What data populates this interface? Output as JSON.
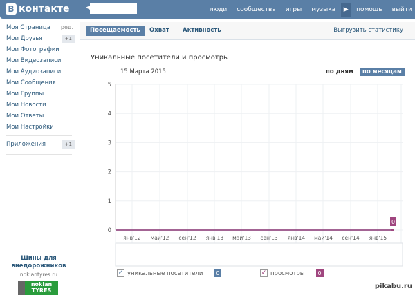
{
  "header": {
    "logo_letter": "В",
    "logo_text": "контакте",
    "back_icon": "chevron-left-icon",
    "nav": [
      "люди",
      "сообщества",
      "игры",
      "музыка",
      "помощь",
      "выйти"
    ],
    "play_icon": "play-icon"
  },
  "sidebar": {
    "items": [
      {
        "label": "Моя Страница",
        "extra": "ред."
      },
      {
        "label": "Мои Друзья",
        "badge": "+1"
      },
      {
        "label": "Мои Фотографии"
      },
      {
        "label": "Мои Видеозаписи"
      },
      {
        "label": "Мои Аудиозаписи"
      },
      {
        "label": "Мои Сообщения"
      },
      {
        "label": "Мои Группы"
      },
      {
        "label": "Мои Новости"
      },
      {
        "label": "Мои Ответы"
      },
      {
        "label": "Мои Настройки"
      }
    ],
    "apps": {
      "label": "Приложения",
      "badge": "+1"
    }
  },
  "ad": {
    "title": "Шины для внедорожников",
    "url": "nokiantyres.ru",
    "logo": "nokian TYRES"
  },
  "tabs": [
    "Посещаемость",
    "Охват",
    "Активность"
  ],
  "export_label": "Выгрузить статистику",
  "chart_title": "Уникальные посетители и просмотры",
  "chart_date": "15 Марта 2015",
  "period": {
    "days": "по дням",
    "months": "по месяцам"
  },
  "chart_data": {
    "type": "line",
    "title": "Уникальные посетители и просмотры",
    "ylim": [
      0,
      5
    ],
    "yticks": [
      0,
      1,
      2,
      3,
      4,
      5
    ],
    "grid": true,
    "xticks": [
      "янв'12",
      "май'12",
      "сен'12",
      "янв'13",
      "май'13",
      "сен'13",
      "янв'14",
      "май'14",
      "сен'14",
      "янв'15"
    ],
    "series": [
      {
        "name": "уникальные посетители",
        "color": "#5a7fa6",
        "values": [
          0,
          0,
          0,
          0,
          0,
          0,
          0,
          0,
          0,
          0,
          0
        ]
      },
      {
        "name": "просмотры",
        "color": "#a0467f",
        "values": [
          0,
          0,
          0,
          0,
          0,
          0,
          0,
          0,
          0,
          0,
          0
        ]
      }
    ],
    "last_point_label": "0"
  },
  "legend": [
    {
      "label": "уникальные посетители",
      "value": "0",
      "color": "#5a7fa6"
    },
    {
      "label": "просмотры",
      "value": "0",
      "color": "#a0467f"
    }
  ],
  "watermark": "pikabu.ru"
}
